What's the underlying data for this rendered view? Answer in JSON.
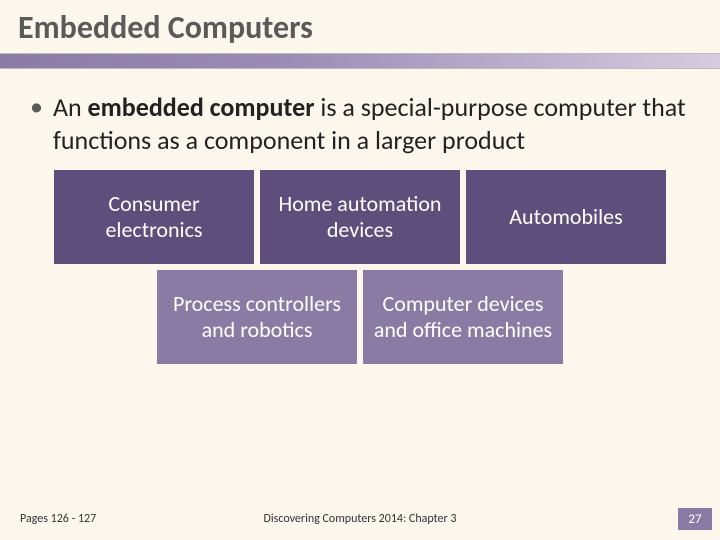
{
  "slide": {
    "title": "Embedded Computers",
    "bullet_prefix": "An ",
    "bullet_bold": "embedded computer",
    "bullet_suffix": " is a special-purpose computer that functions as a component in a larger product",
    "boxes_row1": [
      {
        "label": "Consumer electronics",
        "style": "dark"
      },
      {
        "label": "Home automation devices",
        "style": "dark"
      },
      {
        "label": "Automobiles",
        "style": "dark"
      }
    ],
    "boxes_row2": [
      {
        "label": "Process controllers and robotics",
        "style": "light"
      },
      {
        "label": "Computer devices and office machines",
        "style": "light"
      }
    ],
    "pages_ref": "Pages 126 - 127",
    "book_ref": "Discovering Computers 2014: Chapter 3",
    "page_number": "27",
    "colors": {
      "box_dark": "#5e4e7b",
      "box_light": "#8a7ba5",
      "background": "#fbf7ed",
      "title_text": "#5a5a5a"
    }
  }
}
